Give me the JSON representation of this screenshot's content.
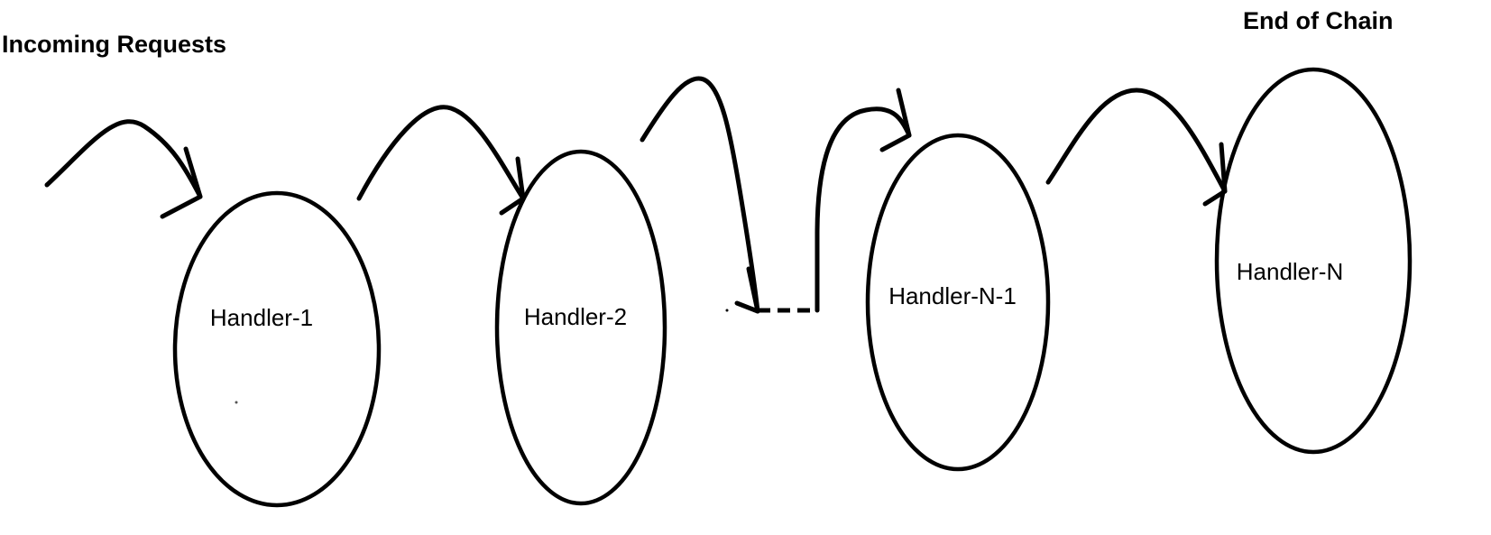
{
  "labels": {
    "incoming": "Incoming Requests",
    "end": "End of Chain"
  },
  "handlers": [
    {
      "id": "h1",
      "label": "Handler-1"
    },
    {
      "id": "h2",
      "label": "Handler-2"
    },
    {
      "id": "hn1",
      "label": "Handler-N-1"
    },
    {
      "id": "hn",
      "label": "Handler-N"
    }
  ],
  "colors": {
    "stroke": "#000000",
    "background": "#ffffff"
  }
}
